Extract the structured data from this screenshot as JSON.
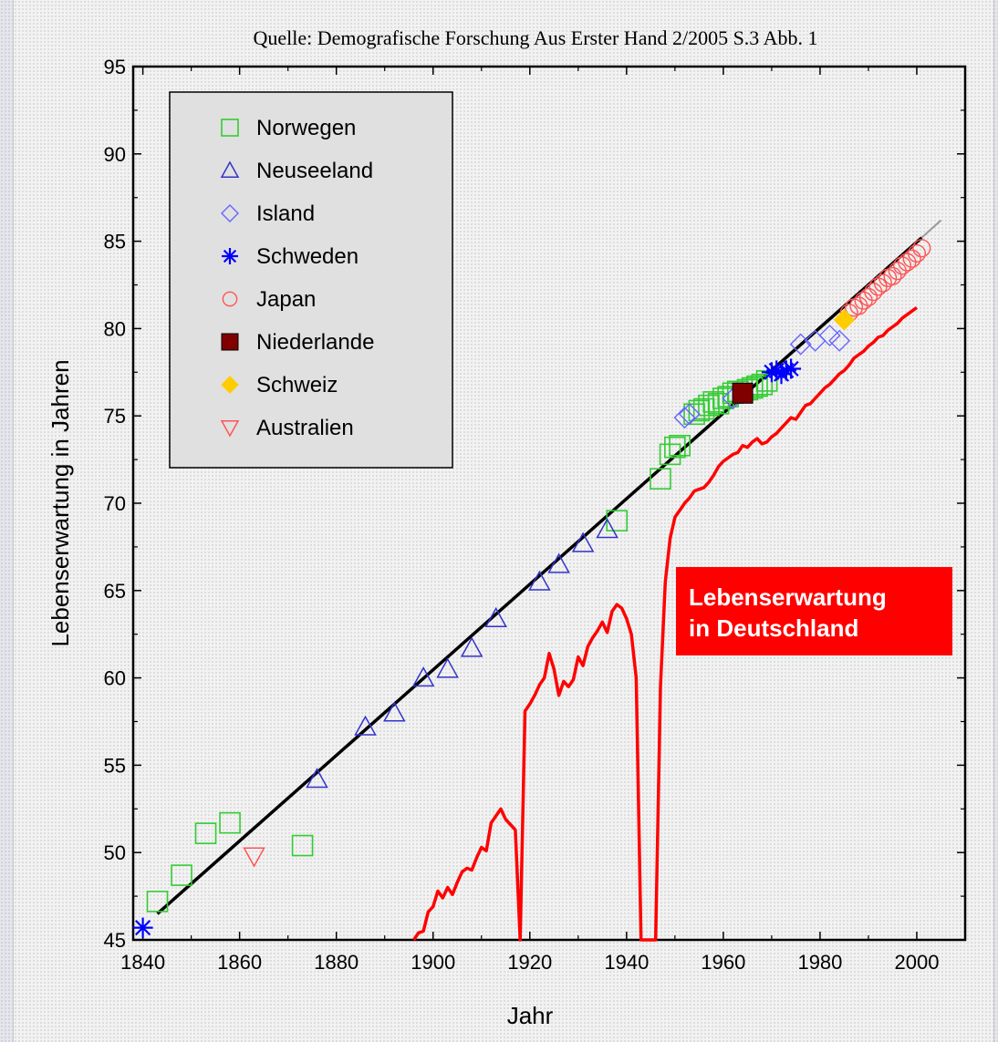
{
  "chart_data": {
    "type": "scatter",
    "source": "Quelle: Demografische Forschung Aus Erster Hand 2/2005 S.3 Abb. 1",
    "xlabel": "Jahr",
    "ylabel": "Lebenserwartung in Jahren",
    "xlim": [
      1838,
      2010
    ],
    "ylim": [
      45,
      95
    ],
    "xticks": [
      1840,
      1860,
      1880,
      1900,
      1920,
      1940,
      1960,
      1980,
      2000
    ],
    "yticks": [
      45,
      50,
      55,
      60,
      65,
      70,
      75,
      80,
      85,
      90,
      95
    ],
    "legend_position": "top-left",
    "series": [
      {
        "name": "Norwegen",
        "marker": "square",
        "color": "#33cc33",
        "points": [
          [
            1843,
            47.2
          ],
          [
            1848,
            48.7
          ],
          [
            1853,
            51.1
          ],
          [
            1858,
            51.7
          ],
          [
            1873,
            50.4
          ],
          [
            1938,
            69.0
          ],
          [
            1947,
            71.4
          ],
          [
            1949,
            72.8
          ],
          [
            1950,
            73.2
          ],
          [
            1951,
            73.3
          ],
          [
            1954,
            75.1
          ],
          [
            1955,
            75.3
          ],
          [
            1956,
            75.4
          ],
          [
            1957,
            75.6
          ],
          [
            1958,
            75.8
          ],
          [
            1959,
            75.7
          ],
          [
            1960,
            76.0
          ],
          [
            1961,
            76.1
          ],
          [
            1962,
            76.3
          ],
          [
            1963,
            76.4
          ],
          [
            1965,
            76.5
          ],
          [
            1966,
            76.6
          ],
          [
            1967,
            76.7
          ],
          [
            1968,
            76.8
          ],
          [
            1969,
            77.0
          ]
        ]
      },
      {
        "name": "Neuseeland",
        "marker": "triangle-up",
        "color": "#3333cc",
        "points": [
          [
            1876,
            54.2
          ],
          [
            1886,
            57.2
          ],
          [
            1892,
            58.0
          ],
          [
            1898,
            60.0
          ],
          [
            1903,
            60.5
          ],
          [
            1908,
            61.7
          ],
          [
            1913,
            63.4
          ],
          [
            1922,
            65.5
          ],
          [
            1926,
            66.5
          ],
          [
            1931,
            67.7
          ],
          [
            1936,
            68.5
          ]
        ]
      },
      {
        "name": "Island",
        "marker": "diamond",
        "color": "#6666ff",
        "points": [
          [
            1952,
            74.9
          ],
          [
            1953,
            75.1
          ],
          [
            1962,
            76.0
          ],
          [
            1976,
            79.1
          ],
          [
            1979,
            79.3
          ],
          [
            1982,
            79.6
          ],
          [
            1984,
            79.3
          ]
        ]
      },
      {
        "name": "Schweden",
        "marker": "asterisk",
        "color": "#0000ff",
        "points": [
          [
            1840,
            45.7
          ],
          [
            1970,
            77.5
          ],
          [
            1971,
            77.6
          ],
          [
            1972,
            77.4
          ],
          [
            1973,
            77.6
          ],
          [
            1974,
            77.7
          ]
        ]
      },
      {
        "name": "Japan",
        "marker": "circle",
        "color": "#ff5555",
        "points": [
          [
            1986,
            80.9
          ],
          [
            1987,
            81.2
          ],
          [
            1988,
            81.3
          ],
          [
            1989,
            81.6
          ],
          [
            1990,
            81.8
          ],
          [
            1991,
            82.1
          ],
          [
            1992,
            82.4
          ],
          [
            1993,
            82.6
          ],
          [
            1994,
            82.9
          ],
          [
            1995,
            83.0
          ],
          [
            1996,
            83.3
          ],
          [
            1997,
            83.6
          ],
          [
            1998,
            83.8
          ],
          [
            1999,
            84.0
          ],
          [
            2000,
            84.3
          ],
          [
            2001,
            84.6
          ]
        ]
      },
      {
        "name": "Niederlande",
        "marker": "filled-square",
        "color": "#800000",
        "points": [
          [
            1964,
            76.3
          ]
        ]
      },
      {
        "name": "Schweiz",
        "marker": "filled-diamond",
        "color": "#ffcc00",
        "points": [
          [
            1985,
            80.5
          ]
        ]
      },
      {
        "name": "Australien",
        "marker": "triangle-down",
        "color": "#ff5555",
        "points": [
          [
            1863,
            49.8
          ]
        ]
      }
    ],
    "trend_line": {
      "color": "#000000",
      "extension_color": "#999999",
      "points": [
        [
          1843,
          46.5
        ],
        [
          2001,
          85.2
        ]
      ],
      "extension_to": [
        2005,
        86.2
      ]
    },
    "germany_line": {
      "label": "Lebenserwartung in Deutschland",
      "color": "#ff0000",
      "points": [
        [
          1896,
          45
        ],
        [
          1897,
          45.4
        ],
        [
          1898,
          45.5
        ],
        [
          1899,
          46.6
        ],
        [
          1900,
          46.9
        ],
        [
          1901,
          47.8
        ],
        [
          1902,
          47.4
        ],
        [
          1903,
          48.0
        ],
        [
          1904,
          47.6
        ],
        [
          1905,
          48.3
        ],
        [
          1906,
          48.9
        ],
        [
          1907,
          49.1
        ],
        [
          1908,
          49.0
        ],
        [
          1909,
          49.7
        ],
        [
          1910,
          50.3
        ],
        [
          1911,
          50.1
        ],
        [
          1912,
          51.7
        ],
        [
          1913,
          52.1
        ],
        [
          1914,
          52.5
        ],
        [
          1915,
          51.9
        ],
        [
          1916,
          51.6
        ],
        [
          1917,
          51.3
        ],
        [
          1918,
          45
        ],
        [
          1919,
          58.1
        ],
        [
          1920,
          58.5
        ],
        [
          1921,
          59.0
        ],
        [
          1922,
          59.6
        ],
        [
          1923,
          60.0
        ],
        [
          1924,
          61.4
        ],
        [
          1925,
          60.5
        ],
        [
          1926,
          59.0
        ],
        [
          1927,
          59.8
        ],
        [
          1928,
          59.5
        ],
        [
          1929,
          59.9
        ],
        [
          1930,
          61.2
        ],
        [
          1931,
          60.7
        ],
        [
          1932,
          61.8
        ],
        [
          1933,
          62.3
        ],
        [
          1934,
          62.7
        ],
        [
          1935,
          63.2
        ],
        [
          1936,
          62.6
        ],
        [
          1937,
          63.8
        ],
        [
          1938,
          64.2
        ],
        [
          1939,
          64.0
        ],
        [
          1940,
          63.4
        ],
        [
          1941,
          62.5
        ],
        [
          1942,
          60.0
        ],
        [
          1943,
          45
        ],
        [
          1946,
          45
        ],
        [
          1947,
          59.5
        ],
        [
          1948,
          65.5
        ],
        [
          1949,
          68.0
        ],
        [
          1950,
          69.2
        ],
        [
          1951,
          69.6
        ],
        [
          1952,
          70.0
        ],
        [
          1953,
          70.3
        ],
        [
          1954,
          70.7
        ],
        [
          1955,
          70.8
        ],
        [
          1956,
          70.9
        ],
        [
          1957,
          71.2
        ],
        [
          1958,
          71.6
        ],
        [
          1959,
          72.1
        ],
        [
          1960,
          72.4
        ],
        [
          1961,
          72.6
        ],
        [
          1962,
          72.8
        ],
        [
          1963,
          72.9
        ],
        [
          1964,
          73.3
        ],
        [
          1965,
          73.2
        ],
        [
          1966,
          73.5
        ],
        [
          1967,
          73.7
        ],
        [
          1968,
          73.4
        ],
        [
          1969,
          73.5
        ],
        [
          1970,
          73.8
        ],
        [
          1971,
          74.0
        ],
        [
          1972,
          74.3
        ],
        [
          1973,
          74.6
        ],
        [
          1974,
          74.9
        ],
        [
          1975,
          74.8
        ],
        [
          1976,
          75.2
        ],
        [
          1977,
          75.6
        ],
        [
          1978,
          75.7
        ],
        [
          1979,
          76.0
        ],
        [
          1980,
          76.3
        ],
        [
          1981,
          76.6
        ],
        [
          1982,
          76.8
        ],
        [
          1983,
          77.1
        ],
        [
          1984,
          77.4
        ],
        [
          1985,
          77.6
        ],
        [
          1986,
          77.9
        ],
        [
          1987,
          78.3
        ],
        [
          1988,
          78.5
        ],
        [
          1989,
          78.7
        ],
        [
          1990,
          79.0
        ],
        [
          1991,
          79.2
        ],
        [
          1992,
          79.5
        ],
        [
          1993,
          79.6
        ],
        [
          1994,
          79.9
        ],
        [
          1995,
          80.1
        ],
        [
          1996,
          80.3
        ],
        [
          1997,
          80.6
        ],
        [
          1998,
          80.8
        ],
        [
          1999,
          81.0
        ],
        [
          2000,
          81.2
        ]
      ]
    },
    "annotation": {
      "lines": [
        "Lebenserwartung",
        "in Deutschland"
      ],
      "background": "#ff0000",
      "text_color": "#ffffff"
    }
  }
}
